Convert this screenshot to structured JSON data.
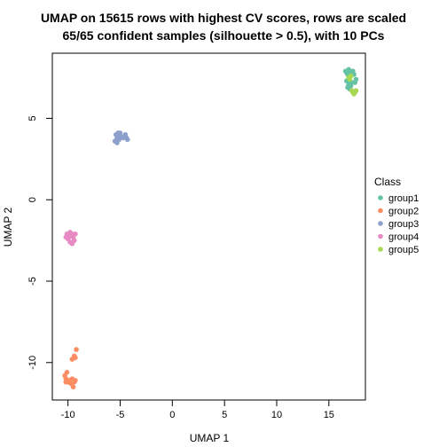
{
  "chart_data": {
    "type": "scatter",
    "title_line1": "UMAP on 15615 rows with highest CV scores, rows are scaled",
    "title_line2": "65/65 confident samples (silhouette > 0.5), with 10 PCs",
    "xlabel": "UMAP 1",
    "ylabel": "UMAP 2",
    "xlim": [
      -11.5,
      18.5
    ],
    "ylim": [
      -12.3,
      9.0
    ],
    "x_ticks": [
      -10,
      -5,
      0,
      5,
      10,
      15
    ],
    "y_ticks": [
      -10,
      -5,
      0,
      5
    ],
    "x_tick_labels": [
      "-10",
      "-5",
      "0",
      "5",
      "10",
      "15"
    ],
    "y_tick_labels": [
      "-10",
      "-5",
      "0",
      "5"
    ],
    "legend": {
      "title": "Class",
      "placement": "right"
    },
    "series": [
      {
        "name": "group1",
        "color": "#66C2A5",
        "points": [
          [
            16.6,
            7.9
          ],
          [
            16.9,
            8.0
          ],
          [
            17.1,
            7.8
          ],
          [
            17.3,
            7.9
          ],
          [
            16.8,
            7.7
          ],
          [
            17.0,
            7.6
          ],
          [
            16.7,
            7.8
          ],
          [
            17.4,
            7.7
          ],
          [
            16.9,
            7.1
          ],
          [
            17.1,
            7.0
          ],
          [
            16.8,
            6.9
          ],
          [
            17.0,
            6.8
          ],
          [
            17.2,
            7.2
          ],
          [
            17.6,
            7.4
          ],
          [
            17.5,
            7.2
          ],
          [
            16.7,
            7.3
          ]
        ]
      },
      {
        "name": "group2",
        "color": "#FC8D62",
        "points": [
          [
            -10.3,
            -10.8
          ],
          [
            -10.1,
            -10.6
          ],
          [
            -10.2,
            -11.0
          ],
          [
            -9.9,
            -11.1
          ],
          [
            -9.6,
            -11.0
          ],
          [
            -9.4,
            -11.2
          ],
          [
            -9.7,
            -11.3
          ],
          [
            -9.5,
            -11.5
          ],
          [
            -9.3,
            -11.1
          ],
          [
            -10.0,
            -11.2
          ],
          [
            -9.2,
            -9.2
          ],
          [
            -9.4,
            -9.6
          ],
          [
            -9.6,
            -9.8
          ],
          [
            -9.3,
            -9.7
          ],
          [
            -10.2,
            -11.2
          ]
        ]
      },
      {
        "name": "group3",
        "color": "#8DA0CB",
        "points": [
          [
            -5.4,
            4.0
          ],
          [
            -5.2,
            4.1
          ],
          [
            -5.0,
            3.9
          ],
          [
            -5.3,
            3.8
          ],
          [
            -5.1,
            3.7
          ],
          [
            -4.6,
            3.9
          ],
          [
            -4.4,
            3.8
          ],
          [
            -4.5,
            4.0
          ],
          [
            -4.3,
            3.7
          ],
          [
            -5.5,
            3.6
          ],
          [
            -5.3,
            3.5
          ],
          [
            -5.0,
            4.1
          ],
          [
            -4.7,
            3.8
          ]
        ]
      },
      {
        "name": "group4",
        "color": "#E78AC3",
        "points": [
          [
            -10.1,
            -2.1
          ],
          [
            -9.8,
            -2.0
          ],
          [
            -9.6,
            -2.1
          ],
          [
            -9.9,
            -2.3
          ],
          [
            -9.7,
            -2.2
          ],
          [
            -10.0,
            -2.4
          ],
          [
            -9.5,
            -2.3
          ],
          [
            -9.3,
            -2.1
          ],
          [
            -9.8,
            -2.6
          ],
          [
            -9.6,
            -2.7
          ],
          [
            -9.4,
            -2.5
          ],
          [
            -10.2,
            -2.3
          ]
        ]
      },
      {
        "name": "group5",
        "color": "#A6D854",
        "points": [
          [
            17.0,
            7.4
          ],
          [
            17.0,
            7.5
          ],
          [
            17.2,
            6.7
          ],
          [
            17.4,
            6.5
          ],
          [
            17.6,
            6.7
          ],
          [
            17.3,
            6.6
          ],
          [
            17.5,
            6.6
          ],
          [
            17.1,
            7.6
          ],
          [
            16.9,
            7.5
          ]
        ]
      }
    ]
  }
}
